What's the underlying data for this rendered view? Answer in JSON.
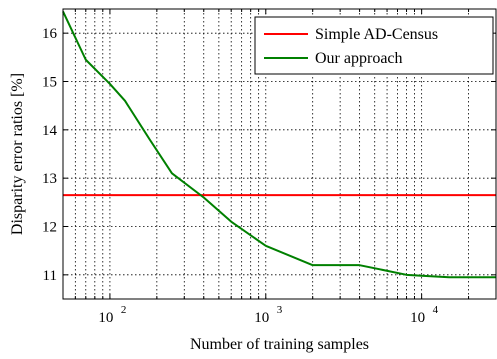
{
  "chart_data": {
    "type": "line",
    "xscale": "log",
    "xlim": [
      50,
      30000
    ],
    "ylim": [
      10.5,
      16.5
    ],
    "grid": true,
    "legend_position": "top-right",
    "xlabel": "Number of training samples",
    "ylabel": "Disparity error ratios [%]",
    "x_ticks": [
      {
        "value": 100,
        "base": "10",
        "exp": "2"
      },
      {
        "value": 1000,
        "base": "10",
        "exp": "3"
      },
      {
        "value": 10000,
        "base": "10",
        "exp": "4"
      }
    ],
    "y_ticks": [
      {
        "value": 11,
        "label": "11"
      },
      {
        "value": 12,
        "label": "12"
      },
      {
        "value": 13,
        "label": "13"
      },
      {
        "value": 14,
        "label": "14"
      },
      {
        "value": 15,
        "label": "15"
      },
      {
        "value": 16,
        "label": "16"
      }
    ],
    "series": [
      {
        "name": "Simple AD-Census",
        "color": "#ff0000",
        "x": [
          50,
          30000
        ],
        "y": [
          12.65,
          12.65
        ]
      },
      {
        "name": "Our approach",
        "color": "#008000",
        "x": [
          50,
          70,
          100,
          125,
          180,
          250,
          400,
          600,
          1000,
          2000,
          4000,
          8000,
          10000,
          15000,
          30000
        ],
        "y": [
          16.45,
          15.45,
          14.95,
          14.6,
          13.8,
          13.1,
          12.6,
          12.1,
          11.6,
          11.2,
          11.2,
          11.0,
          10.98,
          10.95,
          10.95
        ]
      }
    ]
  }
}
